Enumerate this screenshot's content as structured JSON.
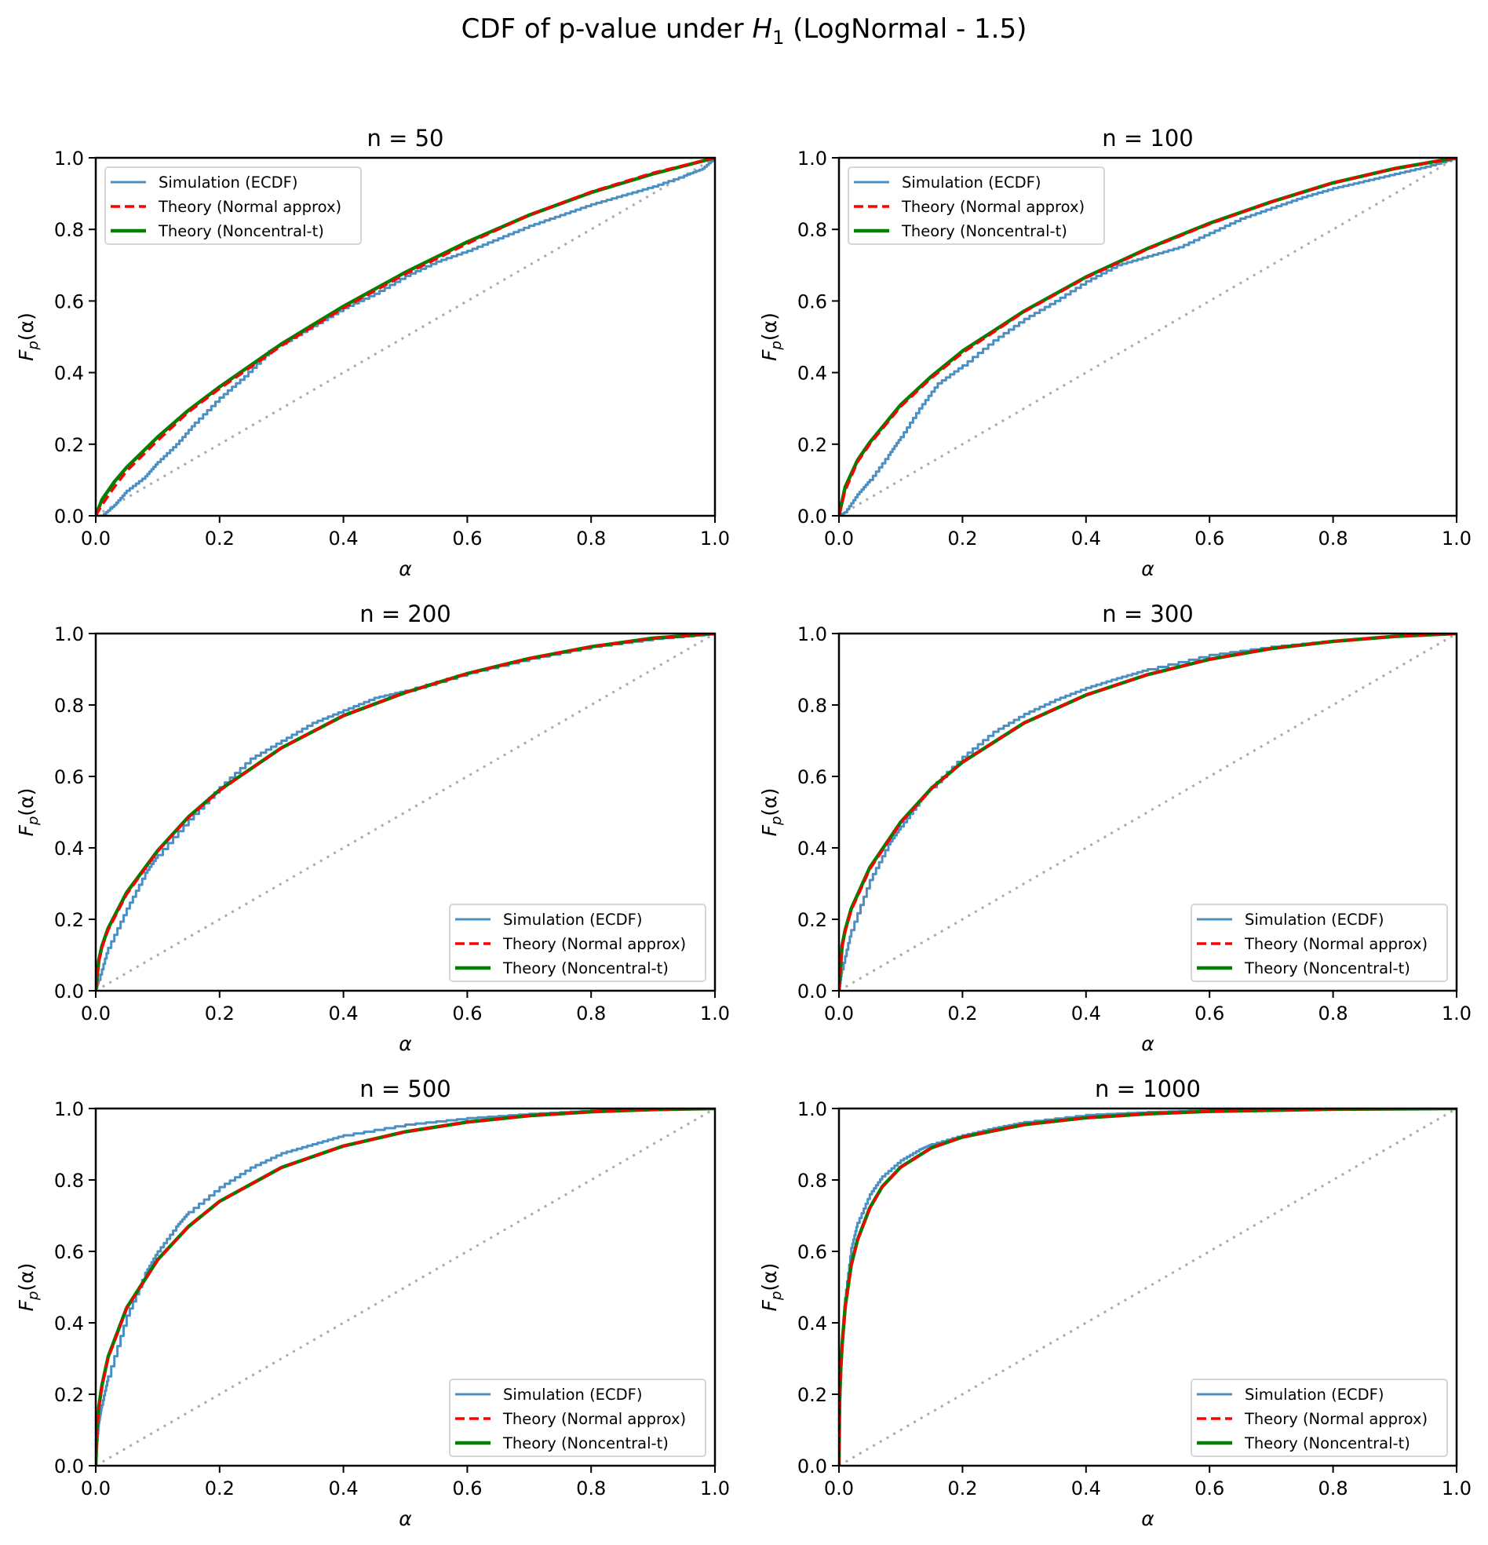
{
  "figure": {
    "title_prefix": "CDF of p-value under ",
    "title_math_main": "H",
    "title_math_sub": "1",
    "title_suffix": " (LogNormal - 1.5)"
  },
  "colors": {
    "simulation": "#4c8fc2",
    "normal_approx": "#ff0000",
    "noncentral_t": "#008000",
    "reference": "#aaaaaa"
  },
  "chart_data": [
    {
      "type": "line",
      "title": "n = 50",
      "xlabel": "α",
      "ylabel_main": "F",
      "ylabel_sub": "p",
      "ylabel_rest": "(α)",
      "xlim": [
        0,
        1
      ],
      "ylim": [
        0,
        1
      ],
      "xticks": [
        "0.0",
        "0.2",
        "0.4",
        "0.6",
        "0.8",
        "1.0"
      ],
      "yticks": [
        "0.0",
        "0.2",
        "0.4",
        "0.6",
        "0.8",
        "1.0"
      ],
      "grid": false,
      "legend_position": "upper-left",
      "series": [
        {
          "name": "Simulation (ECDF)",
          "style": "solid-thin",
          "x": [
            0,
            0.01,
            0.03,
            0.05,
            0.08,
            0.1,
            0.13,
            0.16,
            0.2,
            0.24,
            0.28,
            0.3,
            0.35,
            0.4,
            0.45,
            0.5,
            0.55,
            0.6,
            0.65,
            0.7,
            0.75,
            0.8,
            0.85,
            0.9,
            0.95,
            0.98,
            1.0
          ],
          "y": [
            0,
            0.0,
            0.03,
            0.07,
            0.11,
            0.15,
            0.2,
            0.26,
            0.33,
            0.39,
            0.46,
            0.48,
            0.53,
            0.58,
            0.62,
            0.67,
            0.71,
            0.74,
            0.775,
            0.81,
            0.84,
            0.87,
            0.895,
            0.92,
            0.95,
            0.97,
            1.0
          ]
        },
        {
          "name": "Theory (Normal approx)",
          "style": "dashed",
          "x": [
            0,
            0.01,
            0.03,
            0.05,
            0.1,
            0.15,
            0.2,
            0.3,
            0.4,
            0.5,
            0.6,
            0.7,
            0.8,
            0.9,
            1.0
          ],
          "y": [
            0,
            0.03,
            0.08,
            0.125,
            0.21,
            0.29,
            0.355,
            0.475,
            0.58,
            0.675,
            0.76,
            0.84,
            0.905,
            0.958,
            1.0
          ]
        },
        {
          "name": "Theory (Noncentral-t)",
          "style": "solid-thick",
          "x": [
            0,
            0.01,
            0.03,
            0.05,
            0.1,
            0.15,
            0.2,
            0.3,
            0.4,
            0.5,
            0.6,
            0.7,
            0.8,
            0.9,
            1.0
          ],
          "y": [
            0,
            0.045,
            0.095,
            0.135,
            0.22,
            0.295,
            0.36,
            0.48,
            0.585,
            0.68,
            0.765,
            0.84,
            0.903,
            0.955,
            1.0
          ]
        },
        {
          "name": "Reference (y = x)",
          "style": "dotted",
          "x": [
            0,
            1
          ],
          "y": [
            0,
            1
          ]
        }
      ]
    },
    {
      "type": "line",
      "title": "n = 100",
      "xlabel": "α",
      "ylabel_main": "F",
      "ylabel_sub": "p",
      "ylabel_rest": "(α)",
      "xlim": [
        0,
        1
      ],
      "ylim": [
        0,
        1
      ],
      "xticks": [
        "0.0",
        "0.2",
        "0.4",
        "0.6",
        "0.8",
        "1.0"
      ],
      "yticks": [
        "0.0",
        "0.2",
        "0.4",
        "0.6",
        "0.8",
        "1.0"
      ],
      "grid": false,
      "legend_position": "upper-left",
      "series": [
        {
          "name": "Simulation (ECDF)",
          "style": "solid-thin",
          "x": [
            0,
            0.01,
            0.03,
            0.05,
            0.08,
            0.1,
            0.13,
            0.16,
            0.2,
            0.25,
            0.3,
            0.35,
            0.4,
            0.45,
            0.5,
            0.55,
            0.6,
            0.65,
            0.7,
            0.75,
            0.8,
            0.85,
            0.9,
            0.95,
            1.0
          ],
          "y": [
            0,
            0.01,
            0.06,
            0.1,
            0.17,
            0.22,
            0.3,
            0.37,
            0.42,
            0.49,
            0.55,
            0.6,
            0.655,
            0.7,
            0.725,
            0.75,
            0.79,
            0.83,
            0.86,
            0.89,
            0.915,
            0.935,
            0.955,
            0.975,
            1.0
          ]
        },
        {
          "name": "Theory (Normal approx)",
          "style": "dashed",
          "x": [
            0,
            0.01,
            0.03,
            0.05,
            0.1,
            0.15,
            0.2,
            0.3,
            0.4,
            0.5,
            0.6,
            0.7,
            0.8,
            0.9,
            1.0
          ],
          "y": [
            0,
            0.07,
            0.15,
            0.2,
            0.305,
            0.385,
            0.455,
            0.57,
            0.665,
            0.745,
            0.815,
            0.877,
            0.93,
            0.97,
            1.0
          ]
        },
        {
          "name": "Theory (Noncentral-t)",
          "style": "solid-thick",
          "x": [
            0,
            0.01,
            0.03,
            0.05,
            0.1,
            0.15,
            0.2,
            0.3,
            0.4,
            0.5,
            0.6,
            0.7,
            0.8,
            0.9,
            1.0
          ],
          "y": [
            0,
            0.08,
            0.155,
            0.205,
            0.31,
            0.39,
            0.46,
            0.572,
            0.667,
            0.747,
            0.817,
            0.877,
            0.93,
            0.97,
            1.0
          ]
        },
        {
          "name": "Reference (y = x)",
          "style": "dotted",
          "x": [
            0,
            1
          ],
          "y": [
            0,
            1
          ]
        }
      ]
    },
    {
      "type": "line",
      "title": "n = 200",
      "xlabel": "α",
      "ylabel_main": "F",
      "ylabel_sub": "p",
      "ylabel_rest": "(α)",
      "xlim": [
        0,
        1
      ],
      "ylim": [
        0,
        1
      ],
      "xticks": [
        "0.0",
        "0.2",
        "0.4",
        "0.6",
        "0.8",
        "1.0"
      ],
      "yticks": [
        "0.0",
        "0.2",
        "0.4",
        "0.6",
        "0.8",
        "1.0"
      ],
      "grid": false,
      "legend_position": "lower-right",
      "series": [
        {
          "name": "Simulation (ECDF)",
          "style": "solid-thin",
          "x": [
            0,
            0.005,
            0.02,
            0.05,
            0.08,
            0.1,
            0.15,
            0.2,
            0.25,
            0.3,
            0.35,
            0.4,
            0.45,
            0.5,
            0.6,
            0.7,
            0.8,
            0.9,
            1.0
          ],
          "y": [
            0,
            0.03,
            0.12,
            0.23,
            0.33,
            0.38,
            0.48,
            0.57,
            0.65,
            0.7,
            0.75,
            0.785,
            0.82,
            0.84,
            0.89,
            0.93,
            0.963,
            0.985,
            1.0
          ]
        },
        {
          "name": "Theory (Normal approx)",
          "style": "dashed",
          "x": [
            0,
            0.005,
            0.01,
            0.02,
            0.05,
            0.1,
            0.15,
            0.2,
            0.3,
            0.4,
            0.5,
            0.6,
            0.7,
            0.8,
            0.9,
            1.0
          ],
          "y": [
            0,
            0.08,
            0.12,
            0.17,
            0.27,
            0.39,
            0.485,
            0.56,
            0.68,
            0.77,
            0.835,
            0.888,
            0.93,
            0.963,
            0.987,
            1.0
          ]
        },
        {
          "name": "Theory (Noncentral-t)",
          "style": "solid-thick",
          "x": [
            0,
            0.005,
            0.01,
            0.02,
            0.05,
            0.1,
            0.15,
            0.2,
            0.3,
            0.4,
            0.5,
            0.6,
            0.7,
            0.8,
            0.9,
            1.0
          ],
          "y": [
            0,
            0.085,
            0.125,
            0.175,
            0.275,
            0.392,
            0.487,
            0.562,
            0.68,
            0.77,
            0.835,
            0.888,
            0.93,
            0.963,
            0.987,
            1.0
          ]
        },
        {
          "name": "Reference (y = x)",
          "style": "dotted",
          "x": [
            0,
            1
          ],
          "y": [
            0,
            1
          ]
        }
      ]
    },
    {
      "type": "line",
      "title": "n = 300",
      "xlabel": "α",
      "ylabel_main": "F",
      "ylabel_sub": "p",
      "ylabel_rest": "(α)",
      "xlim": [
        0,
        1
      ],
      "ylim": [
        0,
        1
      ],
      "xticks": [
        "0.0",
        "0.2",
        "0.4",
        "0.6",
        "0.8",
        "1.0"
      ],
      "yticks": [
        "0.0",
        "0.2",
        "0.4",
        "0.6",
        "0.8",
        "1.0"
      ],
      "grid": false,
      "legend_position": "lower-right",
      "series": [
        {
          "name": "Simulation (ECDF)",
          "style": "solid-thin",
          "x": [
            0,
            0.005,
            0.02,
            0.05,
            0.08,
            0.1,
            0.13,
            0.15,
            0.2,
            0.25,
            0.3,
            0.35,
            0.4,
            0.45,
            0.5,
            0.6,
            0.7,
            0.8,
            0.9,
            1.0
          ],
          "y": [
            0,
            0.06,
            0.17,
            0.31,
            0.41,
            0.46,
            0.53,
            0.57,
            0.655,
            0.725,
            0.775,
            0.815,
            0.848,
            0.875,
            0.9,
            0.94,
            0.963,
            0.98,
            0.993,
            1.0
          ]
        },
        {
          "name": "Theory (Normal approx)",
          "style": "dashed",
          "x": [
            0,
            0.005,
            0.01,
            0.02,
            0.05,
            0.1,
            0.15,
            0.2,
            0.3,
            0.4,
            0.5,
            0.6,
            0.7,
            0.8,
            0.9,
            1.0
          ],
          "y": [
            0,
            0.12,
            0.165,
            0.225,
            0.34,
            0.47,
            0.565,
            0.64,
            0.75,
            0.828,
            0.885,
            0.928,
            0.958,
            0.978,
            0.992,
            1.0
          ]
        },
        {
          "name": "Theory (Noncentral-t)",
          "style": "solid-thick",
          "x": [
            0,
            0.005,
            0.01,
            0.02,
            0.05,
            0.1,
            0.15,
            0.2,
            0.3,
            0.4,
            0.5,
            0.6,
            0.7,
            0.8,
            0.9,
            1.0
          ],
          "y": [
            0,
            0.125,
            0.17,
            0.23,
            0.345,
            0.472,
            0.567,
            0.64,
            0.75,
            0.828,
            0.885,
            0.928,
            0.958,
            0.978,
            0.992,
            1.0
          ]
        },
        {
          "name": "Reference (y = x)",
          "style": "dotted",
          "x": [
            0,
            1
          ],
          "y": [
            0,
            1
          ]
        }
      ]
    },
    {
      "type": "line",
      "title": "n = 500",
      "xlabel": "α",
      "ylabel_main": "F",
      "ylabel_sub": "p",
      "ylabel_rest": "(α)",
      "xlim": [
        0,
        1
      ],
      "ylim": [
        0,
        1
      ],
      "xticks": [
        "0.0",
        "0.2",
        "0.4",
        "0.6",
        "0.8",
        "1.0"
      ],
      "yticks": [
        "0.0",
        "0.2",
        "0.4",
        "0.6",
        "0.8",
        "1.0"
      ],
      "grid": false,
      "legend_position": "lower-right",
      "series": [
        {
          "name": "Simulation (ECDF)",
          "style": "solid-thin",
          "x": [
            0,
            0.002,
            0.005,
            0.01,
            0.02,
            0.05,
            0.08,
            0.1,
            0.13,
            0.15,
            0.2,
            0.25,
            0.3,
            0.35,
            0.4,
            0.5,
            0.6,
            0.7,
            0.8,
            0.9,
            1.0
          ],
          "y": [
            0,
            0.06,
            0.12,
            0.17,
            0.25,
            0.42,
            0.54,
            0.6,
            0.67,
            0.71,
            0.78,
            0.835,
            0.875,
            0.9,
            0.925,
            0.955,
            0.973,
            0.985,
            0.994,
            0.998,
            1.0
          ]
        },
        {
          "name": "Theory (Normal approx)",
          "style": "dashed",
          "x": [
            0,
            0.002,
            0.005,
            0.01,
            0.02,
            0.05,
            0.1,
            0.15,
            0.2,
            0.3,
            0.4,
            0.5,
            0.6,
            0.7,
            0.8,
            0.9,
            1.0
          ],
          "y": [
            0,
            0.1,
            0.16,
            0.22,
            0.3,
            0.44,
            0.575,
            0.67,
            0.74,
            0.835,
            0.895,
            0.935,
            0.962,
            0.98,
            0.991,
            0.997,
            1.0
          ]
        },
        {
          "name": "Theory (Noncentral-t)",
          "style": "solid-thick",
          "x": [
            0,
            0.002,
            0.005,
            0.01,
            0.02,
            0.05,
            0.1,
            0.15,
            0.2,
            0.3,
            0.4,
            0.5,
            0.6,
            0.7,
            0.8,
            0.9,
            1.0
          ],
          "y": [
            0,
            0.105,
            0.165,
            0.225,
            0.305,
            0.442,
            0.577,
            0.67,
            0.74,
            0.835,
            0.895,
            0.935,
            0.962,
            0.98,
            0.991,
            0.997,
            1.0
          ]
        },
        {
          "name": "Reference (y = x)",
          "style": "dotted",
          "x": [
            0,
            1
          ],
          "y": [
            0,
            1
          ]
        }
      ]
    },
    {
      "type": "line",
      "title": "n = 1000",
      "xlabel": "α",
      "ylabel_main": "F",
      "ylabel_sub": "p",
      "ylabel_rest": "(α)",
      "xlim": [
        0,
        1
      ],
      "ylim": [
        0,
        1
      ],
      "xticks": [
        "0.0",
        "0.2",
        "0.4",
        "0.6",
        "0.8",
        "1.0"
      ],
      "yticks": [
        "0.0",
        "0.2",
        "0.4",
        "0.6",
        "0.8",
        "1.0"
      ],
      "grid": false,
      "legend_position": "lower-right",
      "series": [
        {
          "name": "Simulation (ECDF)",
          "style": "solid-thin",
          "x": [
            0,
            0.001,
            0.003,
            0.005,
            0.01,
            0.02,
            0.03,
            0.05,
            0.07,
            0.1,
            0.13,
            0.15,
            0.2,
            0.25,
            0.3,
            0.4,
            0.5,
            0.6,
            0.8,
            1.0
          ],
          "y": [
            0,
            0.12,
            0.26,
            0.34,
            0.47,
            0.61,
            0.68,
            0.76,
            0.81,
            0.855,
            0.885,
            0.9,
            0.925,
            0.945,
            0.962,
            0.982,
            0.99,
            0.995,
            0.999,
            1.0
          ]
        },
        {
          "name": "Theory (Normal approx)",
          "style": "dashed",
          "x": [
            0,
            0.001,
            0.003,
            0.005,
            0.01,
            0.02,
            0.03,
            0.05,
            0.07,
            0.1,
            0.15,
            0.2,
            0.3,
            0.4,
            0.5,
            0.6,
            0.8,
            1.0
          ],
          "y": [
            0,
            0.18,
            0.27,
            0.33,
            0.44,
            0.56,
            0.63,
            0.72,
            0.78,
            0.835,
            0.89,
            0.92,
            0.955,
            0.974,
            0.985,
            0.992,
            0.998,
            1.0
          ]
        },
        {
          "name": "Theory (Noncentral-t)",
          "style": "solid-thick",
          "x": [
            0,
            0.001,
            0.003,
            0.005,
            0.01,
            0.02,
            0.03,
            0.05,
            0.07,
            0.1,
            0.15,
            0.2,
            0.3,
            0.4,
            0.5,
            0.6,
            0.8,
            1.0
          ],
          "y": [
            0,
            0.185,
            0.275,
            0.335,
            0.445,
            0.563,
            0.632,
            0.722,
            0.781,
            0.836,
            0.89,
            0.92,
            0.955,
            0.974,
            0.985,
            0.992,
            0.998,
            1.0
          ]
        },
        {
          "name": "Reference (y = x)",
          "style": "dotted",
          "x": [
            0,
            1
          ],
          "y": [
            0,
            1
          ]
        }
      ]
    }
  ]
}
